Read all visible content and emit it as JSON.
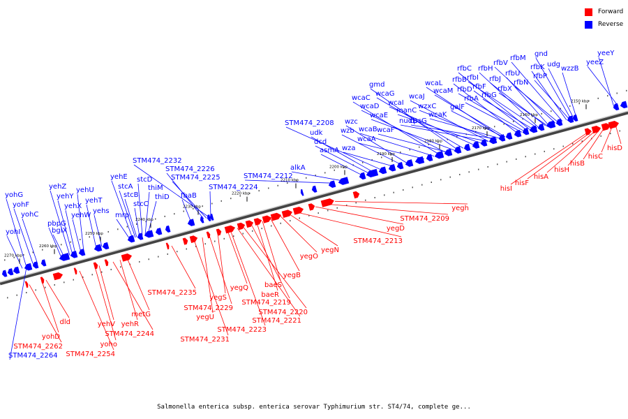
{
  "legend": {
    "forward_label": "Forward",
    "reverse_label": "Reverse",
    "forward_color": "#ff0000",
    "reverse_color": "#0000ff"
  },
  "caption": "Salmonella enterica subsp. enterica serovar Typhimurium str. ST4/74, complete ge...",
  "ruler_labels": [
    "2150 kbp",
    "2160 kbp",
    "2170 kbp",
    "2180 kbp",
    "2190 kbp",
    "2200 kbp",
    "2210 kbp",
    "2220 kbp",
    "2230 kbp",
    "2240 kbp",
    "2250 kbp",
    "2260 kbp",
    "2270 kbp"
  ],
  "reverse_genes": [
    "yeeY",
    "yeeZ",
    "gnd",
    "udg",
    "wzzB",
    "rfbM",
    "rfbV",
    "rfbK",
    "rfbP",
    "rfbU",
    "rfbN",
    "rfbH",
    "rfbJ",
    "rfbX",
    "rfbC",
    "rfbI",
    "rfbD",
    "rfbF",
    "rfbG",
    "rfbB",
    "rfbA",
    "galF",
    "wcaL",
    "wcaM",
    "wcaJ",
    "wzxC",
    "wcaK",
    "gmd",
    "wcaG",
    "wcaC",
    "wcaI",
    "manC",
    "wcaD",
    "wcaE",
    "nudD",
    "cpsG",
    "wcaB",
    "wcaF",
    "wzc",
    "wzb",
    "wcaA",
    "wza",
    "STM474_2208",
    "udk",
    "dcd",
    "asmA",
    "alkA",
    "STM474_2212",
    "STM474_2232",
    "STM474_2226",
    "STM474_2225",
    "STM474_2224",
    "yehE",
    "stcD",
    "stcA",
    "thiM",
    "stcB",
    "thiD",
    "fbaB",
    "mrp",
    "stcC",
    "yehZ",
    "yehU",
    "yehY",
    "yehX",
    "yehT",
    "yehW",
    "yehs",
    "pbpG",
    "bglX",
    "yohG",
    "yohF",
    "yohC",
    "yohI",
    "STM474_2264"
  ],
  "forward_genes": [
    "hisD",
    "hisC",
    "hisB",
    "hisH",
    "hisA",
    "hisF",
    "hisI",
    "yegh",
    "STM474_2209",
    "yegD",
    "STM474_2213",
    "yegN",
    "yegO",
    "yegB",
    "baeS",
    "baeR",
    "STM474_2219",
    "STM474_2220",
    "STM474_2221",
    "STM474_2223",
    "yegQ",
    "yegS",
    "STM474_2229",
    "yegU",
    "STM474_2231",
    "STM474_2235",
    "metG",
    "yehR",
    "STM474_2244",
    "yehV",
    "yoho",
    "STM474_2254",
    "dld",
    "yohD",
    "STM474_2262"
  ]
}
